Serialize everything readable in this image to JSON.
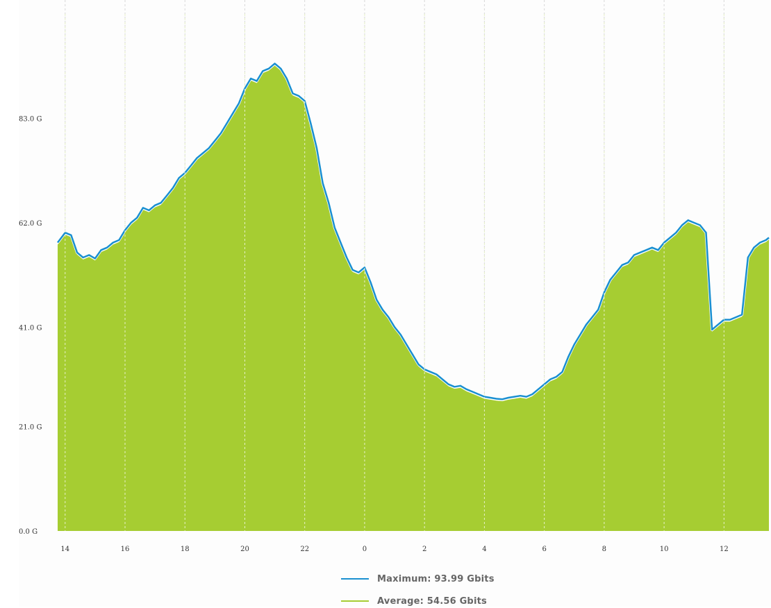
{
  "chart_data": {
    "type": "area",
    "ylim": [
      0,
      104
    ],
    "yticks": [
      0,
      21,
      41,
      62,
      83
    ],
    "ytick_labels": [
      "0.0 G",
      "21.0 G",
      "41.0 G",
      "62.0 G",
      "83.0 G"
    ],
    "xtick_labels": [
      "14",
      "16",
      "18",
      "20",
      "22",
      "0",
      "2",
      "4",
      "6",
      "8",
      "10",
      "12"
    ],
    "x_unit": "hour of day",
    "grid": {
      "vertical": true,
      "horizontal": false
    },
    "legend_position": "bottom-center",
    "colors": {
      "maximum": "#1a8fd0",
      "average": "#a6cd32"
    },
    "series": [
      {
        "name": "Maximum",
        "legend_text": "Maximum: 93.99 Gbits",
        "style": "line",
        "points": [
          [
            13.75,
            58.0
          ],
          [
            14.0,
            60.0
          ],
          [
            14.2,
            59.5
          ],
          [
            14.4,
            56.0
          ],
          [
            14.6,
            55.0
          ],
          [
            14.8,
            55.5
          ],
          [
            15.0,
            54.8
          ],
          [
            15.2,
            56.5
          ],
          [
            15.4,
            57.0
          ],
          [
            15.6,
            58.0
          ],
          [
            15.8,
            58.5
          ],
          [
            16.0,
            60.5
          ],
          [
            16.2,
            62.0
          ],
          [
            16.4,
            63.0
          ],
          [
            16.6,
            65.0
          ],
          [
            16.8,
            64.5
          ],
          [
            17.0,
            65.5
          ],
          [
            17.2,
            66.0
          ],
          [
            17.4,
            67.5
          ],
          [
            17.6,
            69.0
          ],
          [
            17.8,
            71.0
          ],
          [
            18.0,
            72.0
          ],
          [
            18.2,
            73.5
          ],
          [
            18.4,
            75.0
          ],
          [
            18.6,
            76.0
          ],
          [
            18.8,
            77.0
          ],
          [
            19.0,
            78.5
          ],
          [
            19.2,
            80.0
          ],
          [
            19.4,
            82.0
          ],
          [
            19.6,
            84.0
          ],
          [
            19.8,
            86.0
          ],
          [
            20.0,
            89.0
          ],
          [
            20.2,
            91.0
          ],
          [
            20.4,
            90.5
          ],
          [
            20.6,
            92.5
          ],
          [
            20.8,
            93.0
          ],
          [
            21.0,
            94.0
          ],
          [
            21.2,
            93.0
          ],
          [
            21.4,
            91.0
          ],
          [
            21.6,
            88.0
          ],
          [
            21.8,
            87.5
          ],
          [
            22.0,
            86.5
          ],
          [
            22.2,
            82.0
          ],
          [
            22.4,
            77.0
          ],
          [
            22.6,
            70.0
          ],
          [
            22.8,
            66.0
          ],
          [
            23.0,
            61.0
          ],
          [
            23.2,
            58.0
          ],
          [
            23.4,
            55.0
          ],
          [
            23.6,
            52.5
          ],
          [
            23.8,
            52.0
          ],
          [
            24.0,
            53.0
          ],
          [
            24.2,
            50.0
          ],
          [
            24.4,
            46.5
          ],
          [
            24.6,
            44.5
          ],
          [
            24.8,
            43.0
          ],
          [
            25.0,
            41.0
          ],
          [
            25.2,
            39.5
          ],
          [
            25.4,
            37.5
          ],
          [
            25.6,
            35.5
          ],
          [
            25.8,
            33.5
          ],
          [
            26.0,
            32.5
          ],
          [
            26.2,
            32.0
          ],
          [
            26.4,
            31.5
          ],
          [
            26.6,
            30.5
          ],
          [
            26.8,
            29.5
          ],
          [
            27.0,
            29.0
          ],
          [
            27.2,
            29.2
          ],
          [
            27.4,
            28.5
          ],
          [
            27.6,
            28.0
          ],
          [
            27.8,
            27.5
          ],
          [
            28.0,
            27.0
          ],
          [
            28.2,
            26.8
          ],
          [
            28.4,
            26.6
          ],
          [
            28.6,
            26.5
          ],
          [
            28.8,
            26.8
          ],
          [
            29.0,
            27.0
          ],
          [
            29.2,
            27.2
          ],
          [
            29.4,
            27.0
          ],
          [
            29.6,
            27.5
          ],
          [
            29.8,
            28.5
          ],
          [
            30.0,
            29.5
          ],
          [
            30.2,
            30.5
          ],
          [
            30.4,
            31.0
          ],
          [
            30.6,
            32.0
          ],
          [
            30.8,
            35.0
          ],
          [
            31.0,
            37.5
          ],
          [
            31.2,
            39.5
          ],
          [
            31.4,
            41.5
          ],
          [
            31.6,
            43.0
          ],
          [
            31.8,
            44.5
          ],
          [
            32.0,
            48.0
          ],
          [
            32.2,
            50.5
          ],
          [
            32.4,
            52.0
          ],
          [
            32.6,
            53.5
          ],
          [
            32.8,
            54.0
          ],
          [
            33.0,
            55.5
          ],
          [
            33.2,
            56.0
          ],
          [
            33.4,
            56.5
          ],
          [
            33.6,
            57.0
          ],
          [
            33.8,
            56.5
          ],
          [
            34.0,
            58.0
          ],
          [
            34.2,
            59.0
          ],
          [
            34.4,
            60.0
          ],
          [
            34.6,
            61.5
          ],
          [
            34.8,
            62.5
          ],
          [
            35.0,
            62.0
          ],
          [
            35.2,
            61.5
          ],
          [
            35.4,
            60.0
          ],
          [
            35.6,
            40.5
          ],
          [
            35.8,
            41.5
          ],
          [
            36.0,
            42.5
          ],
          [
            36.2,
            42.5
          ],
          [
            36.4,
            43.0
          ],
          [
            36.6,
            43.5
          ],
          [
            36.8,
            55.0
          ],
          [
            37.0,
            57.0
          ],
          [
            37.2,
            58.0
          ],
          [
            37.4,
            58.5
          ],
          [
            37.5,
            59.0
          ]
        ]
      },
      {
        "name": "Average",
        "legend_text": "Average: 54.56 Gbits",
        "style": "area",
        "points": [
          [
            13.75,
            57.6
          ],
          [
            14.0,
            59.6
          ],
          [
            14.2,
            59.1
          ],
          [
            14.4,
            55.6
          ],
          [
            14.6,
            54.6
          ],
          [
            14.8,
            55.1
          ],
          [
            15.0,
            54.4
          ],
          [
            15.2,
            56.1
          ],
          [
            15.4,
            56.6
          ],
          [
            15.6,
            57.6
          ],
          [
            15.8,
            58.1
          ],
          [
            16.0,
            60.1
          ],
          [
            16.2,
            61.6
          ],
          [
            16.4,
            62.6
          ],
          [
            16.6,
            64.6
          ],
          [
            16.8,
            64.1
          ],
          [
            17.0,
            65.1
          ],
          [
            17.2,
            65.6
          ],
          [
            17.4,
            67.1
          ],
          [
            17.6,
            68.6
          ],
          [
            17.8,
            70.6
          ],
          [
            18.0,
            71.6
          ],
          [
            18.2,
            73.1
          ],
          [
            18.4,
            74.6
          ],
          [
            18.6,
            75.6
          ],
          [
            18.8,
            76.6
          ],
          [
            19.0,
            78.1
          ],
          [
            19.2,
            79.6
          ],
          [
            19.4,
            81.6
          ],
          [
            19.6,
            83.6
          ],
          [
            19.8,
            85.6
          ],
          [
            20.0,
            88.6
          ],
          [
            20.2,
            90.6
          ],
          [
            20.4,
            90.1
          ],
          [
            20.6,
            92.1
          ],
          [
            20.8,
            92.6
          ],
          [
            21.0,
            93.6
          ],
          [
            21.2,
            92.6
          ],
          [
            21.4,
            90.6
          ],
          [
            21.6,
            87.6
          ],
          [
            21.8,
            87.1
          ],
          [
            22.0,
            86.1
          ],
          [
            22.2,
            81.6
          ],
          [
            22.4,
            76.6
          ],
          [
            22.6,
            69.6
          ],
          [
            22.8,
            65.6
          ],
          [
            23.0,
            60.6
          ],
          [
            23.2,
            57.6
          ],
          [
            23.4,
            54.6
          ],
          [
            23.6,
            52.1
          ],
          [
            23.8,
            51.6
          ],
          [
            24.0,
            52.6
          ],
          [
            24.2,
            49.6
          ],
          [
            24.4,
            46.1
          ],
          [
            24.6,
            44.1
          ],
          [
            24.8,
            42.6
          ],
          [
            25.0,
            40.6
          ],
          [
            25.2,
            39.1
          ],
          [
            25.4,
            37.1
          ],
          [
            25.6,
            35.1
          ],
          [
            25.8,
            33.1
          ],
          [
            26.0,
            32.1
          ],
          [
            26.2,
            31.6
          ],
          [
            26.4,
            31.1
          ],
          [
            26.6,
            30.1
          ],
          [
            26.8,
            29.1
          ],
          [
            27.0,
            28.6
          ],
          [
            27.2,
            28.8
          ],
          [
            27.4,
            28.1
          ],
          [
            27.6,
            27.6
          ],
          [
            27.8,
            27.1
          ],
          [
            28.0,
            26.6
          ],
          [
            28.2,
            26.4
          ],
          [
            28.4,
            26.2
          ],
          [
            28.6,
            26.1
          ],
          [
            28.8,
            26.4
          ],
          [
            29.0,
            26.6
          ],
          [
            29.2,
            26.8
          ],
          [
            29.4,
            26.6
          ],
          [
            29.6,
            27.1
          ],
          [
            29.8,
            28.1
          ],
          [
            30.0,
            29.1
          ],
          [
            30.2,
            30.1
          ],
          [
            30.4,
            30.6
          ],
          [
            30.6,
            31.6
          ],
          [
            30.8,
            34.6
          ],
          [
            31.0,
            37.1
          ],
          [
            31.2,
            39.1
          ],
          [
            31.4,
            41.1
          ],
          [
            31.6,
            42.6
          ],
          [
            31.8,
            44.1
          ],
          [
            32.0,
            47.6
          ],
          [
            32.2,
            50.1
          ],
          [
            32.4,
            51.6
          ],
          [
            32.6,
            53.1
          ],
          [
            32.8,
            53.6
          ],
          [
            33.0,
            55.1
          ],
          [
            33.2,
            55.6
          ],
          [
            33.4,
            56.1
          ],
          [
            33.6,
            56.6
          ],
          [
            33.8,
            56.1
          ],
          [
            34.0,
            57.6
          ],
          [
            34.2,
            58.6
          ],
          [
            34.4,
            59.6
          ],
          [
            34.6,
            61.1
          ],
          [
            34.8,
            62.1
          ],
          [
            35.0,
            61.6
          ],
          [
            35.2,
            61.1
          ],
          [
            35.4,
            59.6
          ],
          [
            35.6,
            40.1
          ],
          [
            35.8,
            41.1
          ],
          [
            36.0,
            42.1
          ],
          [
            36.2,
            42.1
          ],
          [
            36.4,
            42.6
          ],
          [
            36.6,
            43.1
          ],
          [
            36.8,
            54.6
          ],
          [
            37.0,
            56.6
          ],
          [
            37.2,
            57.6
          ],
          [
            37.4,
            58.1
          ],
          [
            37.5,
            58.6
          ]
        ]
      }
    ]
  }
}
